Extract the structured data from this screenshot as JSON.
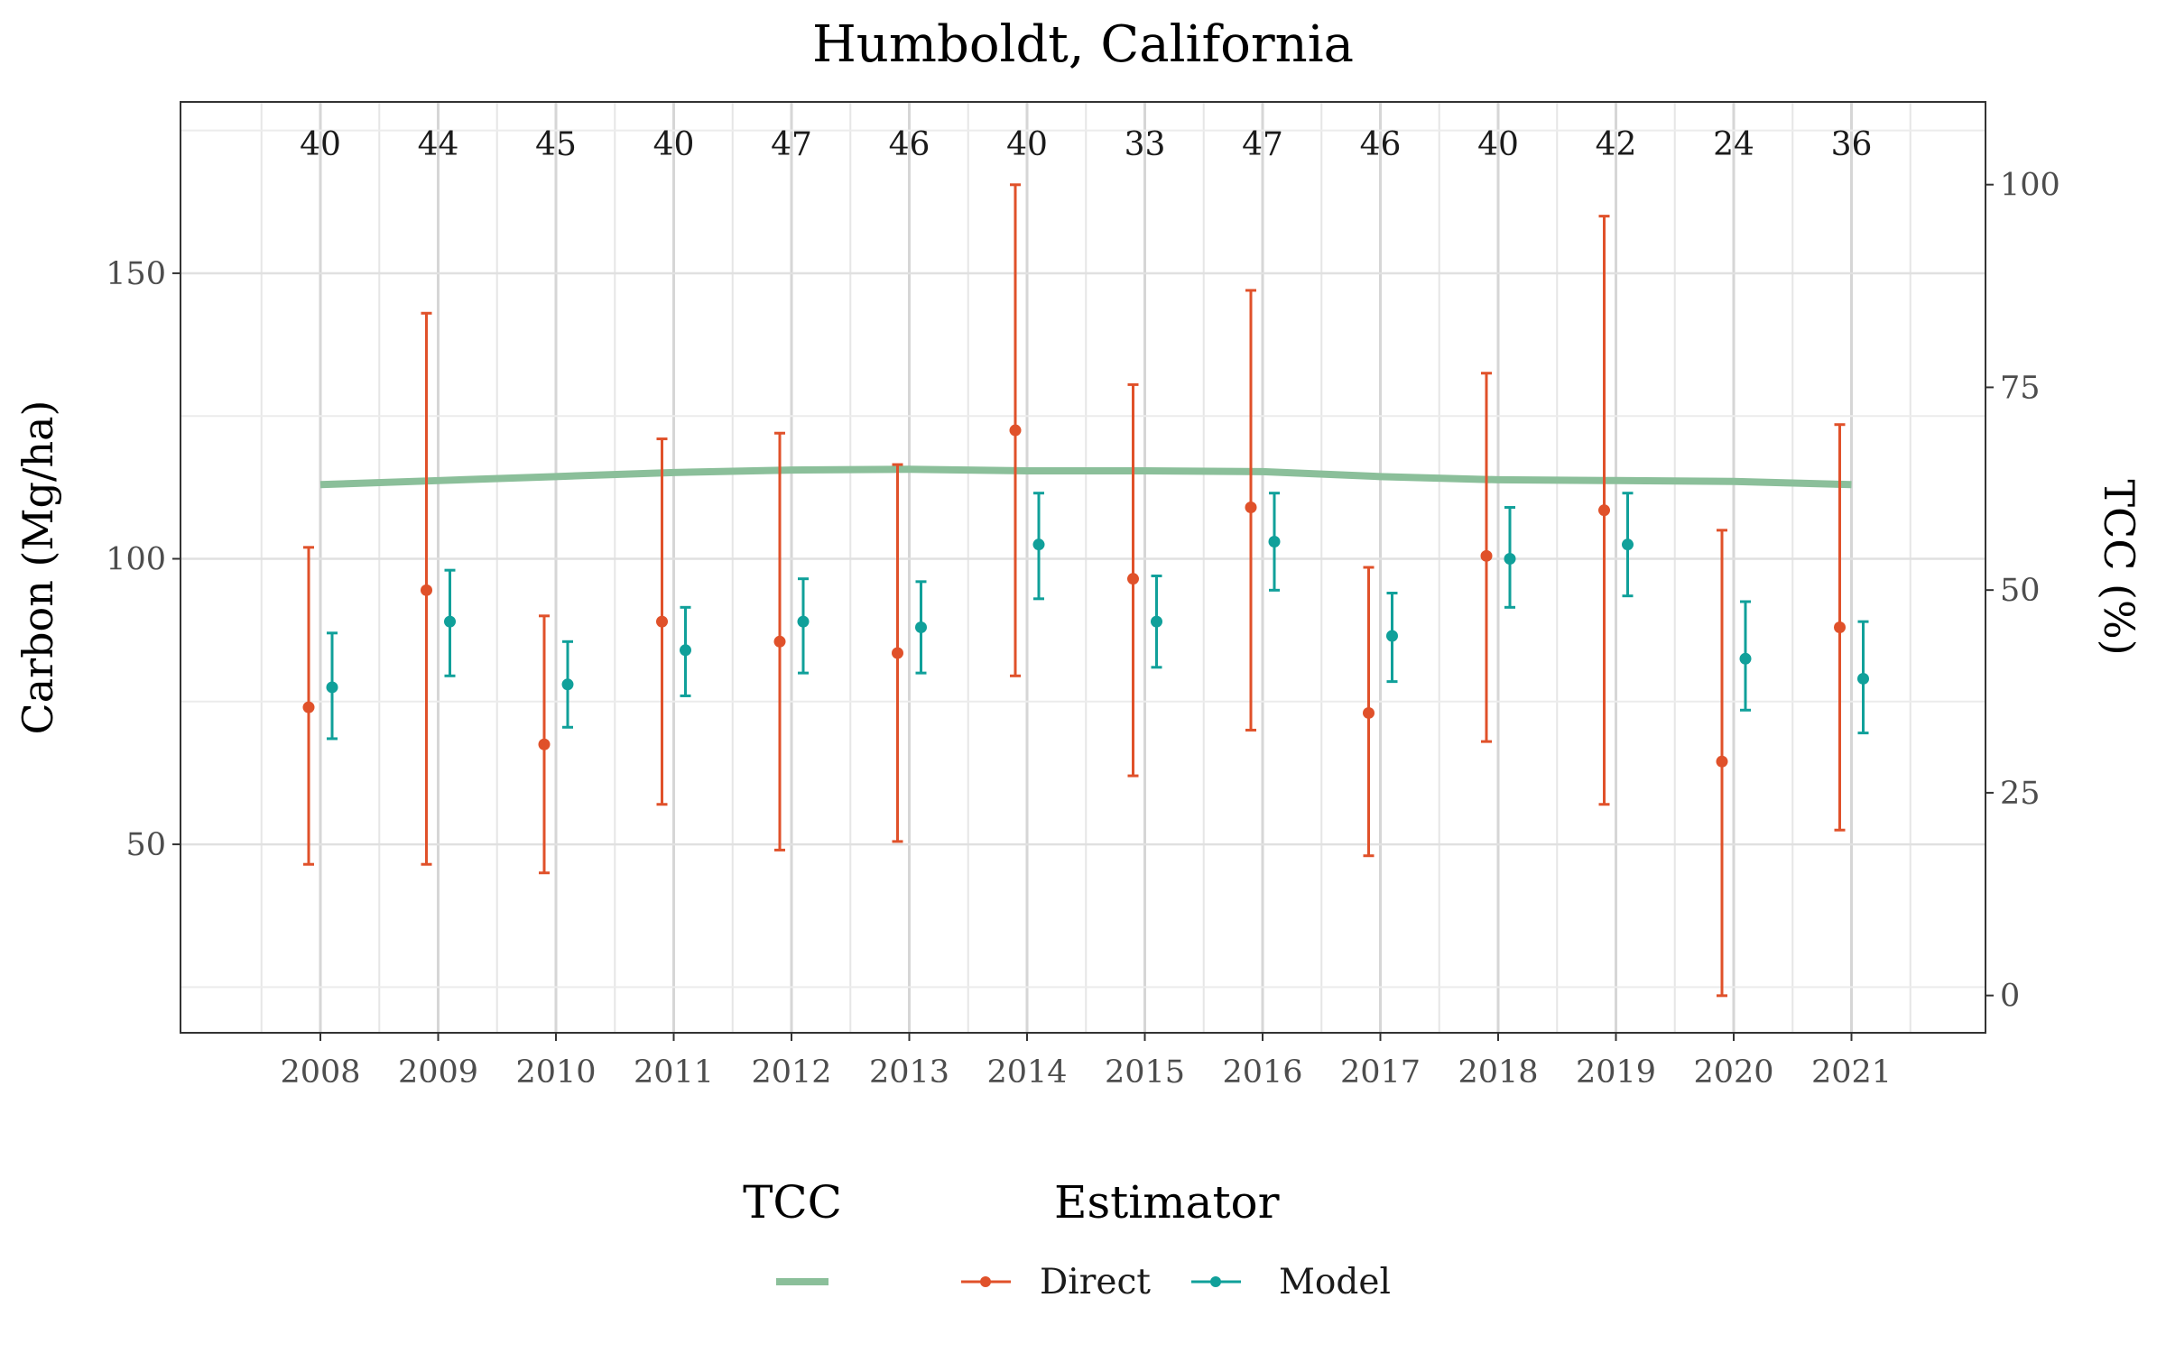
{
  "chart_data": {
    "type": "line",
    "title": "Humboldt, California",
    "ylabel": "Carbon (Mg/ha)",
    "y2label": "TCC (%)",
    "xlabel": "",
    "categories": [
      "2008",
      "2009",
      "2010",
      "2011",
      "2012",
      "2013",
      "2014",
      "2015",
      "2016",
      "2017",
      "2018",
      "2019",
      "2020",
      "2021"
    ],
    "ylim": [
      17,
      180
    ],
    "yticks": [
      50,
      100,
      150
    ],
    "y2lim": [
      -4.6,
      110.2
    ],
    "y2ticks": [
      0,
      25,
      50,
      75,
      100
    ],
    "counts": [
      "40",
      "44",
      "45",
      "40",
      "47",
      "46",
      "40",
      "33",
      "47",
      "46",
      "40",
      "42",
      "24",
      "36"
    ],
    "tcc_series": {
      "name": "TCC",
      "color": "#8bbf9a",
      "values": [
        63.0,
        63.5,
        64.0,
        64.5,
        64.8,
        64.9,
        64.7,
        64.7,
        64.6,
        64.0,
        63.6,
        63.5,
        63.4,
        63.0
      ]
    },
    "series": [
      {
        "name": "Direct",
        "color": "#e0512a",
        "values": [
          74,
          94.5,
          67.5,
          89,
          85.5,
          83.5,
          122.5,
          96.5,
          109,
          73,
          100.5,
          108.5,
          64.5,
          88
        ],
        "lower": [
          46.5,
          46.5,
          45,
          57,
          49,
          50.5,
          79.5,
          62,
          70,
          48,
          68,
          57,
          23.5,
          52.5
        ],
        "upper": [
          102,
          143,
          90,
          121,
          122,
          116.5,
          165.5,
          130.5,
          147,
          98.5,
          132.5,
          160,
          105,
          123.5
        ]
      },
      {
        "name": "Model",
        "color": "#10a09a",
        "values": [
          77.5,
          89,
          78,
          84,
          89,
          88,
          102.5,
          89,
          103,
          86.5,
          100,
          102.5,
          82.5,
          79
        ],
        "lower": [
          68.5,
          79.5,
          70.5,
          76,
          80,
          80,
          93,
          81,
          94.5,
          78.5,
          91.5,
          93.5,
          73.5,
          69.5
        ],
        "upper": [
          87,
          98,
          85.5,
          91.5,
          96.5,
          96,
          111.5,
          97,
          111.5,
          94,
          109,
          111.5,
          92.5,
          89
        ]
      }
    ],
    "legend": {
      "position": "bottom",
      "tcc_title": "TCC",
      "estimator_title": "Estimator",
      "entries": [
        "Direct",
        "Model"
      ]
    },
    "grid": true
  }
}
